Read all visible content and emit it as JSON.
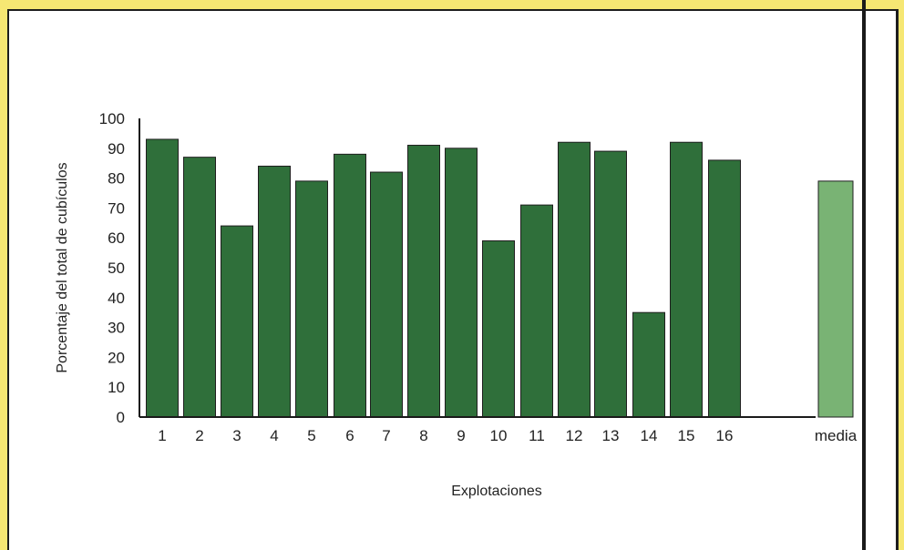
{
  "chart_data": {
    "type": "bar",
    "categories": [
      "1",
      "2",
      "3",
      "4",
      "5",
      "6",
      "7",
      "8",
      "9",
      "10",
      "11",
      "12",
      "13",
      "14",
      "15",
      "16",
      "media"
    ],
    "values": [
      93,
      87,
      64,
      84,
      79,
      88,
      82,
      91,
      90,
      59,
      71,
      92,
      89,
      35,
      92,
      86,
      79
    ],
    "xlabel": "Explotaciones",
    "ylabel": "Porcentaje del total de cubículos",
    "ylim": [
      0,
      100
    ],
    "yticks": [
      "0",
      "10",
      "20",
      "30",
      "40",
      "50",
      "60",
      "70",
      "80",
      "90",
      "100"
    ],
    "grid": false,
    "colors": {
      "main": "#2f6f3a",
      "media": "#79b374",
      "text": "#222222",
      "axis": "#1a1a1a"
    }
  }
}
